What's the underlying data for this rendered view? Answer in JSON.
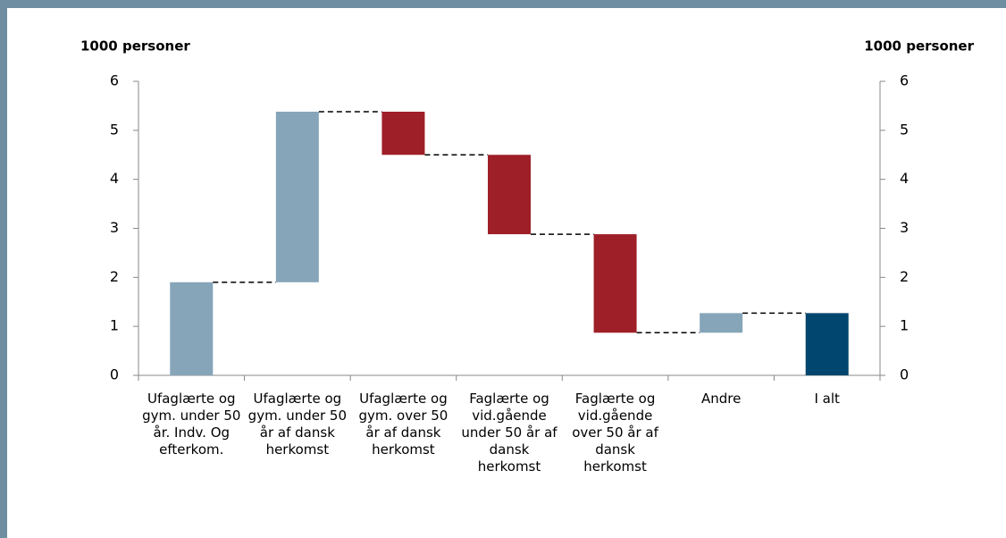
{
  "chart_data": {
    "type": "waterfall",
    "y_label": "1000 personer",
    "y2_label": "1000 personer",
    "categories": [
      "Ufaglærte og gym. under 50 år. Indv. Og efterkom.",
      "Ufaglærte og gym. under 50 år af dansk herkomst",
      "Ufaglærte og gym. over 50 år af dansk herkomst",
      "Faglærte og vid.gående under 50 år af dansk herkomst",
      "Faglærte og vid.gående over 50 år af dansk herkomst",
      "Andre",
      "I alt"
    ],
    "values": [
      1.9,
      3.48,
      -0.88,
      -1.62,
      -2.01,
      0.4,
      1.27
    ],
    "is_total": [
      false,
      false,
      false,
      false,
      false,
      false,
      true
    ],
    "colors": {
      "increase": "#86a5b9",
      "decrease": "#9e1f27",
      "total": "#00466e"
    },
    "ylim": [
      0,
      6
    ],
    "yticks": [
      0,
      1,
      2,
      3,
      4,
      5,
      6
    ],
    "y2lim": [
      0,
      6
    ],
    "y2ticks": [
      0,
      1,
      2,
      3,
      4,
      5,
      6
    ],
    "connectors": true
  }
}
